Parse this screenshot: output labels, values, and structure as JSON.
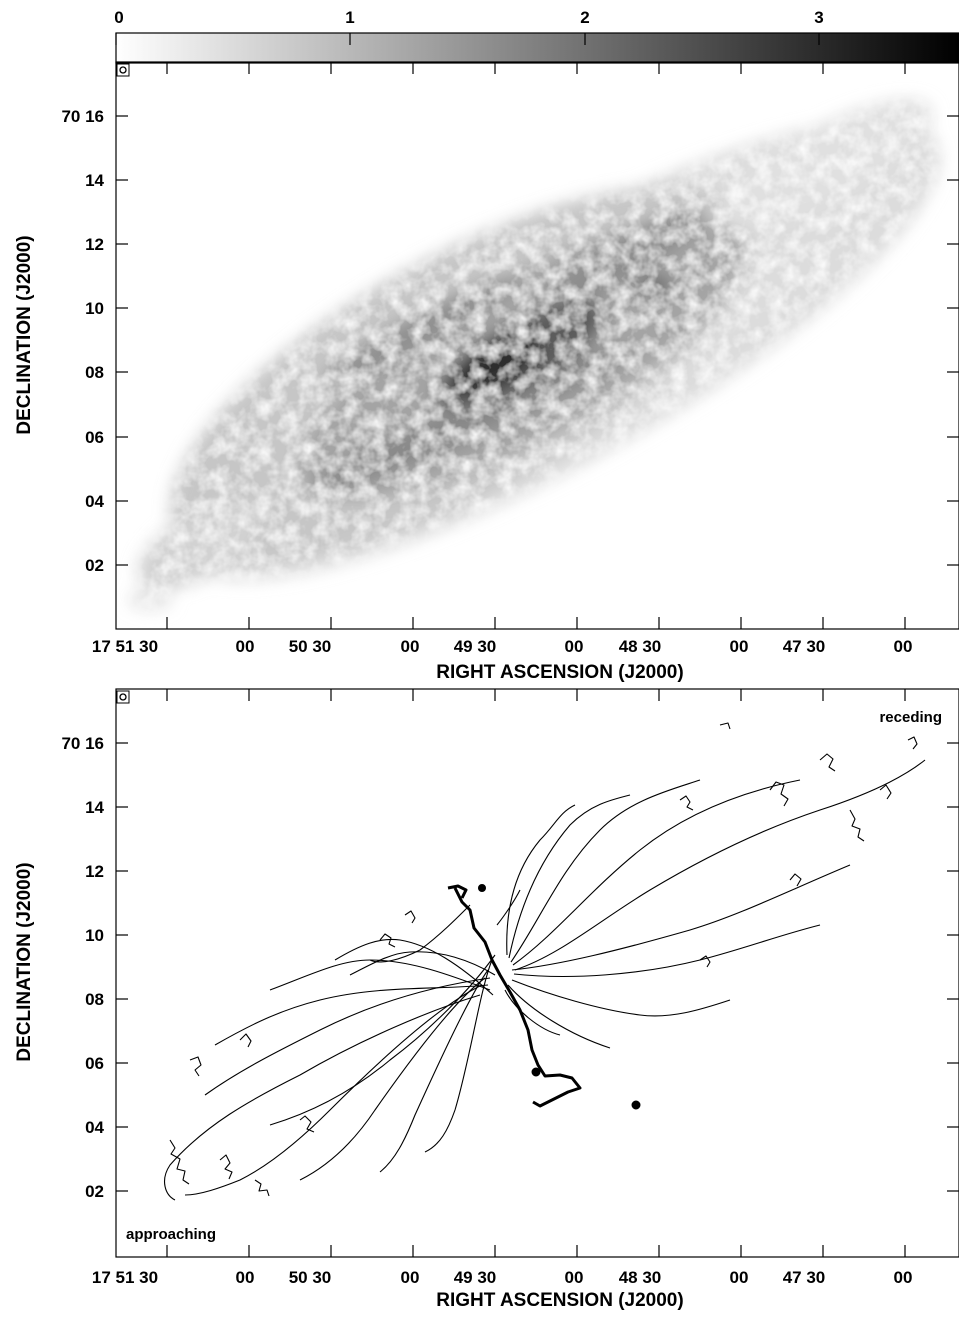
{
  "colorbar": {
    "labels": [
      "0",
      "1",
      "2",
      "3"
    ],
    "values": [
      0,
      1,
      2,
      3
    ],
    "range": [
      0,
      3.6
    ],
    "scale": "grayscale (white to black)"
  },
  "top_panel": {
    "type": "grayscale intensity map",
    "ylabel": "DECLINATION (J2000)",
    "xlabel": "RIGHT ASCENSION (J2000)",
    "dec_ticks": [
      "70 16",
      "14",
      "12",
      "10",
      "08",
      "06",
      "04",
      "02"
    ],
    "ra_ticks": [
      "17 51 30",
      "00",
      "50 30",
      "00",
      "49 30",
      "00",
      "48 30",
      "00",
      "47 30",
      "00"
    ]
  },
  "bottom_panel": {
    "type": "velocity contour map",
    "ylabel": "DECLINATION (J2000)",
    "xlabel": "RIGHT ASCENSION (J2000)",
    "dec_ticks": [
      "70 16",
      "14",
      "12",
      "10",
      "08",
      "06",
      "04",
      "02"
    ],
    "ra_ticks": [
      "17 51 30",
      "00",
      "50 30",
      "00",
      "49 30",
      "00",
      "48 30",
      "00",
      "47 30",
      "00"
    ],
    "annotation_receding": "receding",
    "annotation_approaching": "approaching"
  },
  "colors": {
    "ink": "#000000",
    "background": "#ffffff"
  }
}
